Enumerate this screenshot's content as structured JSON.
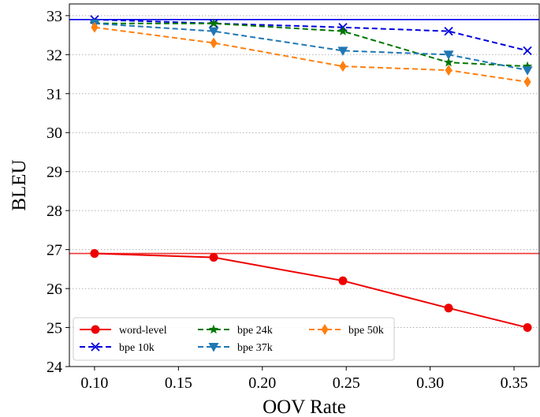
{
  "chart_data": {
    "type": "line",
    "xlabel": "OOV Rate",
    "ylabel": "BLEU",
    "xlim": [
      0.085,
      0.365
    ],
    "ylim": [
      24,
      33.3
    ],
    "x_ticks": [
      "0.10",
      "0.15",
      "0.20",
      "0.25",
      "0.30",
      "0.35"
    ],
    "y_ticks": [
      "24",
      "25",
      "26",
      "27",
      "28",
      "29",
      "30",
      "31",
      "32",
      "33"
    ],
    "grid": "horizontal dotted",
    "legend_placement": "lower-left",
    "reference_lines": [
      {
        "y": 32.9,
        "color": "#0000ee"
      },
      {
        "y": 26.9,
        "color": "#ee3333"
      }
    ],
    "series": [
      {
        "name": "word-level",
        "color": "#ee0000",
        "marker": "circle",
        "dash": "solid",
        "x": [
          0.1,
          0.171,
          0.248,
          0.311,
          0.358
        ],
        "y": [
          26.9,
          26.8,
          26.2,
          25.5,
          25.0
        ]
      },
      {
        "name": "bpe 10k",
        "color": "#0000dd",
        "marker": "x",
        "dash": "dashed",
        "x": [
          0.1,
          0.171,
          0.248,
          0.311,
          0.358
        ],
        "y": [
          32.9,
          32.8,
          32.7,
          32.6,
          32.1
        ]
      },
      {
        "name": "bpe 24k",
        "color": "#007700",
        "marker": "star",
        "dash": "dashed",
        "x": [
          0.1,
          0.171,
          0.248,
          0.311,
          0.358
        ],
        "y": [
          32.8,
          32.8,
          32.6,
          31.8,
          31.7
        ]
      },
      {
        "name": "bpe 37k",
        "color": "#1f77b4",
        "marker": "triangle-down",
        "dash": "dashed",
        "x": [
          0.1,
          0.171,
          0.248,
          0.311,
          0.358
        ],
        "y": [
          32.8,
          32.6,
          32.1,
          32.0,
          31.6
        ]
      },
      {
        "name": "bpe 50k",
        "color": "#ff7f0e",
        "marker": "diamond",
        "dash": "dashed",
        "x": [
          0.1,
          0.171,
          0.248,
          0.311,
          0.358
        ],
        "y": [
          32.7,
          32.3,
          31.7,
          31.6,
          31.3
        ]
      }
    ]
  }
}
